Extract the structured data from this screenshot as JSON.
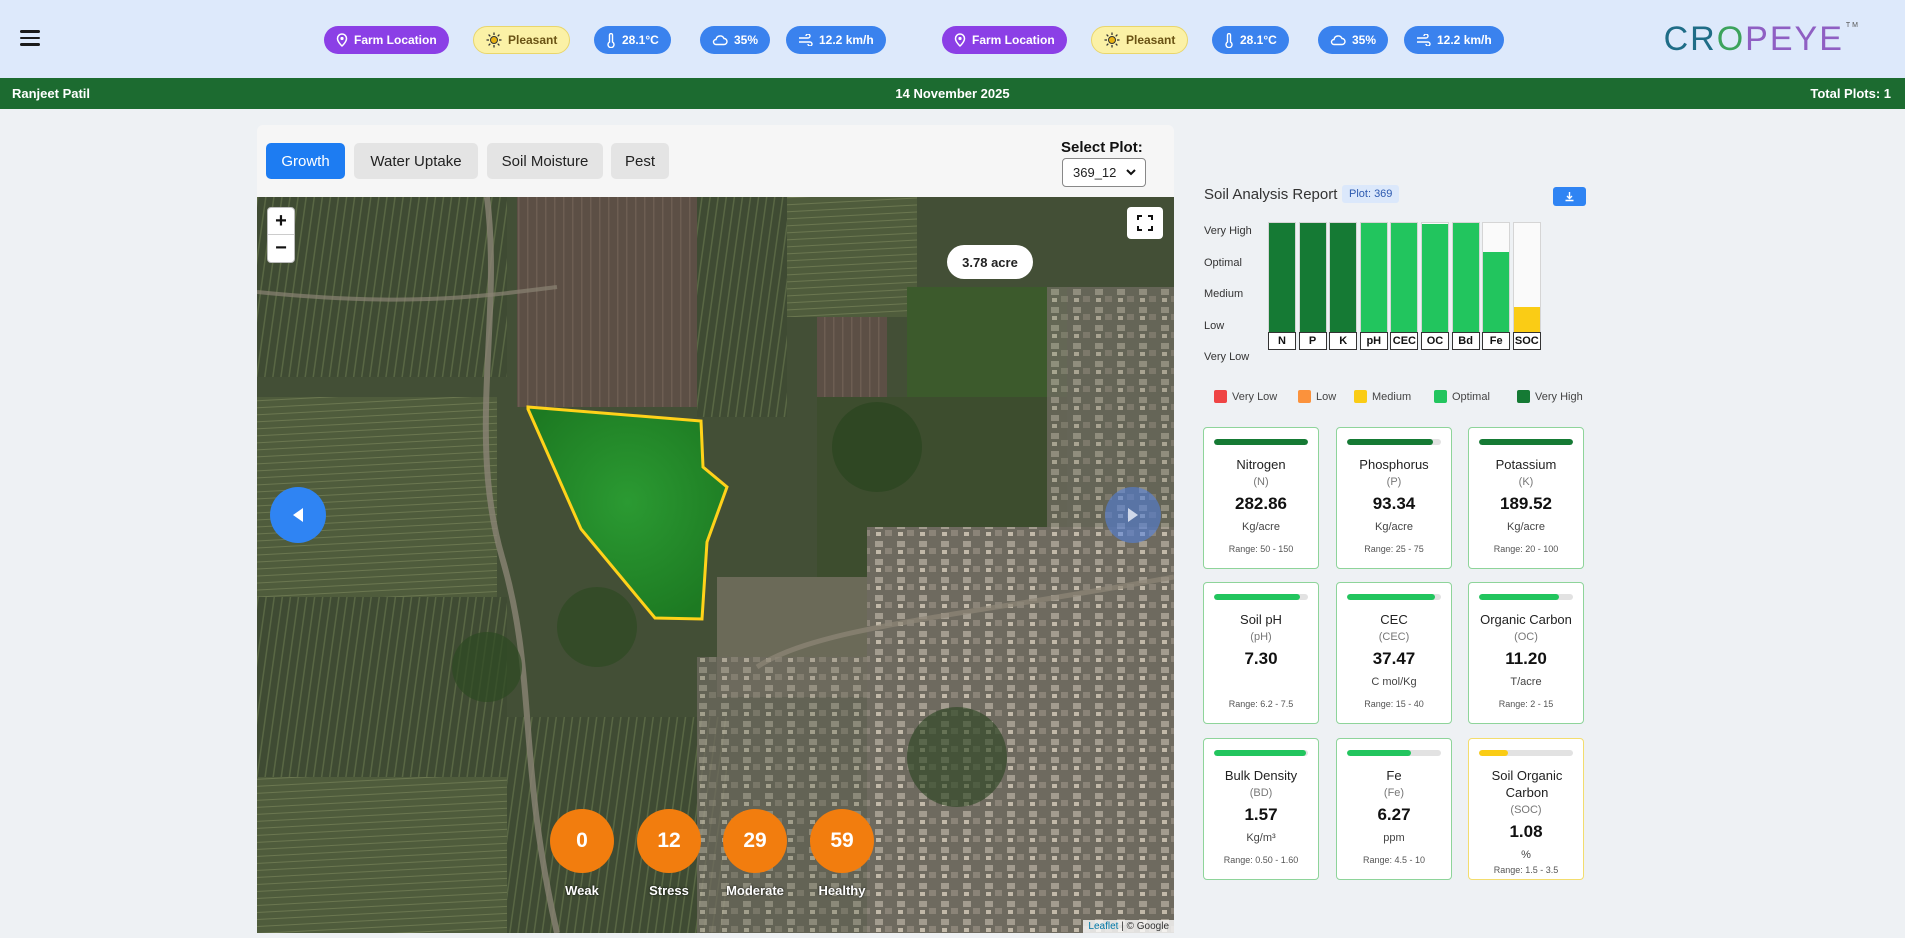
{
  "header": {
    "chips": [
      {
        "type": "loc",
        "label": "Farm Location",
        "icon": "map-pin-icon"
      },
      {
        "type": "weather",
        "label": "Pleasant",
        "icon": "sun-icon"
      },
      {
        "type": "blue",
        "label": "28.1°C",
        "icon": "thermometer-icon"
      },
      {
        "type": "blue",
        "label": "35%",
        "icon": "cloud-icon"
      },
      {
        "type": "blue",
        "label": "12.2 km/h",
        "icon": "wind-icon"
      },
      {
        "type": "loc",
        "label": "Farm Location",
        "icon": "map-pin-icon"
      },
      {
        "type": "weather",
        "label": "Pleasant",
        "icon": "sun-icon"
      },
      {
        "type": "blue",
        "label": "28.1°C",
        "icon": "thermometer-icon"
      },
      {
        "type": "blue",
        "label": "35%",
        "icon": "cloud-icon"
      },
      {
        "type": "blue",
        "label": "12.2 km/h",
        "icon": "wind-icon"
      }
    ],
    "logo": {
      "part1": "CR",
      "part2": "O",
      "part3": "PEYE",
      "tm": "TM"
    }
  },
  "infobar": {
    "user": "Ranjeet Patil",
    "date": "14 November 2025",
    "total_plots": "Total Plots:  1"
  },
  "map_panel": {
    "tabs": [
      "Growth",
      "Water Uptake",
      "Soil Moisture",
      "Pest"
    ],
    "active_tab": "Growth",
    "select_label": "Select Plot:",
    "selected_plot": "369_12",
    "area_label": "3.78 acre",
    "zoom_in": "+",
    "zoom_out": "−",
    "stats": [
      {
        "value": "0",
        "label": "Weak"
      },
      {
        "value": "12",
        "label": "Stress"
      },
      {
        "value": "29",
        "label": "Moderate"
      },
      {
        "value": "59",
        "label": "Healthy"
      }
    ],
    "attribution": {
      "leaflet": "Leaflet",
      "rest": " | © Google"
    }
  },
  "soil": {
    "title": "Soil Analysis Report",
    "plot_badge": "Plot: 369",
    "y_levels": [
      "Very High",
      "Optimal",
      "Medium",
      "Low",
      "Very Low"
    ],
    "bars": [
      {
        "label": "N",
        "level": 1.0,
        "color": "#157a34"
      },
      {
        "label": "P",
        "level": 1.0,
        "color": "#157a34"
      },
      {
        "label": "K",
        "level": 1.0,
        "color": "#157a34"
      },
      {
        "label": "pH",
        "level": 1.0,
        "color": "#22c55e"
      },
      {
        "label": "CEC",
        "level": 1.0,
        "color": "#22c55e"
      },
      {
        "label": "OC",
        "level": 0.99,
        "color": "#22c55e"
      },
      {
        "label": "Bd",
        "level": 1.0,
        "color": "#22c55e"
      },
      {
        "label": "Fe",
        "level": 0.77,
        "color": "#22c55e"
      },
      {
        "label": "SOC",
        "level": 0.33,
        "color": "#facc15"
      }
    ],
    "legend": [
      {
        "label": "Very Low",
        "color": "#ef4444"
      },
      {
        "label": "Low",
        "color": "#fb923c"
      },
      {
        "label": "Medium",
        "color": "#facc15"
      },
      {
        "label": "Optimal",
        "color": "#22c55e"
      },
      {
        "label": "Very High",
        "color": "#157a34"
      }
    ],
    "cards": [
      {
        "name": "Nitrogen",
        "abbr": "(N)",
        "value": "282.86",
        "unit": "Kg/acre",
        "range": "Range: 50 - 150",
        "fill": 1.0,
        "color": "#157a34"
      },
      {
        "name": "Phosphorus",
        "abbr": "(P)",
        "value": "93.34",
        "unit": "Kg/acre",
        "range": "Range: 25 - 75",
        "fill": 0.91,
        "color": "#157a34"
      },
      {
        "name": "Potassium",
        "abbr": "(K)",
        "value": "189.52",
        "unit": "Kg/acre",
        "range": "Range: 20 - 100",
        "fill": 1.0,
        "color": "#157a34"
      },
      {
        "name": "Soil pH",
        "abbr": "(pH)",
        "value": "7.30",
        "unit": "",
        "range": "Range: 6.2 - 7.5",
        "fill": 0.92,
        "color": "#22c55e"
      },
      {
        "name": "CEC",
        "abbr": "(CEC)",
        "value": "37.47",
        "unit": "C mol/Kg",
        "range": "Range: 15 - 40",
        "fill": 0.94,
        "color": "#22c55e"
      },
      {
        "name": "Organic Carbon",
        "abbr": "(OC)",
        "value": "11.20",
        "unit": "T/acre",
        "range": "Range: 2 - 15",
        "fill": 0.85,
        "color": "#22c55e"
      },
      {
        "name": "Bulk Density",
        "abbr": "(BD)",
        "value": "1.57",
        "unit": "Kg/m³",
        "range": "Range: 0.50 - 1.60",
        "fill": 0.98,
        "color": "#22c55e"
      },
      {
        "name": "Fe",
        "abbr": "(Fe)",
        "value": "6.27",
        "unit": "ppm",
        "range": "Range: 4.5 - 10",
        "fill": 0.68,
        "color": "#22c55e"
      },
      {
        "name": "Soil Organic Carbon",
        "abbr": "(SOC)",
        "value": "1.08",
        "unit": "%",
        "range": "Range: 1.5 - 3.5",
        "fill": 0.31,
        "color": "#facc15"
      }
    ]
  }
}
